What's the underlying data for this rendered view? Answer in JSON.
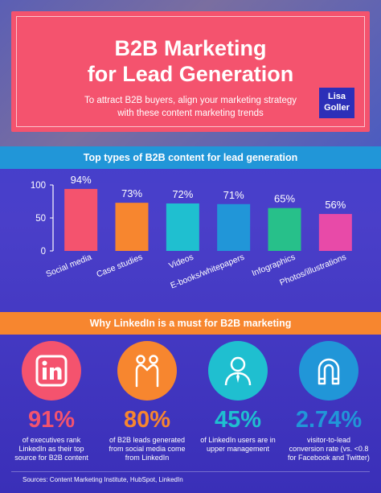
{
  "hero": {
    "title_line1": "B2B Marketing",
    "title_line2": "for Lead Generation",
    "subtitle_line1": "To attract B2B buyers, align your marketing strategy",
    "subtitle_line2": "with these content marketing trends",
    "logo_line1": "Lisa",
    "logo_line2": "Goller"
  },
  "section1": {
    "title": "Top types of B2B content for lead generation"
  },
  "section2": {
    "title": "Why LinkedIn is a must for B2B marketing"
  },
  "chart_data": {
    "type": "bar",
    "title": "Top types of B2B content for lead generation",
    "categories": [
      "Social media",
      "Case studies",
      "Videos",
      "E-books/whitepapers",
      "Infographics",
      "Photos/illustrations"
    ],
    "values": [
      94,
      73,
      72,
      71,
      65,
      56
    ],
    "value_labels": [
      "94%",
      "73%",
      "72%",
      "71%",
      "65%",
      "56%"
    ],
    "colors": [
      "#f4536e",
      "#f7862f",
      "#1fbfd0",
      "#2196d8",
      "#27c08a",
      "#e84aa8"
    ],
    "yticks": [
      0,
      50,
      100
    ],
    "ylim": [
      0,
      100
    ],
    "grid": false
  },
  "stats": [
    {
      "icon": "linkedin-icon",
      "color": "#f4536e",
      "value": "91%",
      "desc_line1": "of executives rank",
      "desc_line2": "LinkedIn as their top",
      "desc_line3": "source for B2B content"
    },
    {
      "icon": "handshake-icon",
      "color": "#f7862f",
      "value": "80%",
      "desc_line1": "of B2B leads generated",
      "desc_line2": "from social media come",
      "desc_line3": "from LinkedIn"
    },
    {
      "icon": "user-icon",
      "color": "#1fbfd0",
      "value": "45%",
      "desc_line1": "of LinkedIn users are in",
      "desc_line2": "upper management",
      "desc_line3": ""
    },
    {
      "icon": "magnet-icon",
      "color": "#2196d8",
      "value": "2.74%",
      "desc_line1": "visitor-to-lead",
      "desc_line2": "conversion rate (vs. <0.8",
      "desc_line3": "for Facebook and Twitter)"
    }
  ],
  "sources": "Sources: Content Marketing Institute, HubSpot, LinkedIn"
}
